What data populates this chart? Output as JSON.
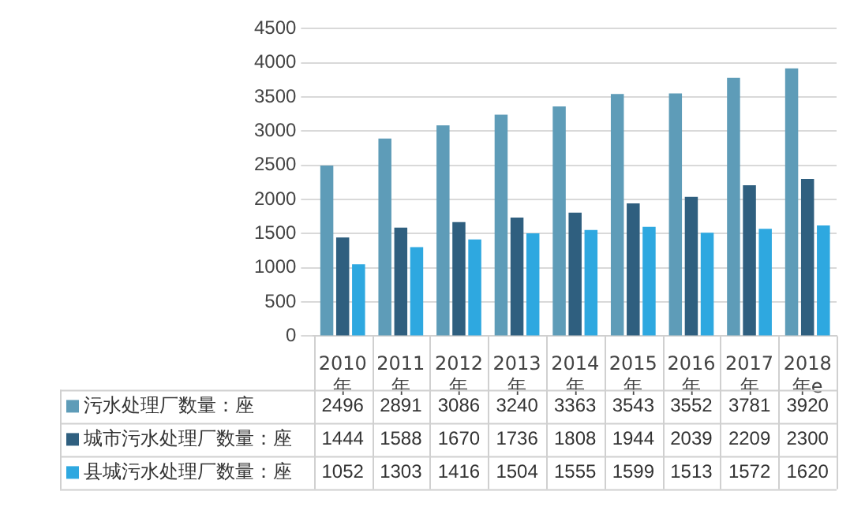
{
  "chart_data": {
    "type": "bar",
    "categories": [
      "2010年",
      "2011年",
      "2012年",
      "2013年",
      "2014年",
      "2015年",
      "2016年",
      "2017年",
      "2018年e"
    ],
    "series": [
      {
        "name": "污水处理厂数量：座",
        "color": "#5e9cb8",
        "values": [
          2496,
          2891,
          3086,
          3240,
          3363,
          3543,
          3552,
          3781,
          3920
        ]
      },
      {
        "name": "城市污水处理厂数量：座",
        "color": "#2f5f7f",
        "values": [
          1444,
          1588,
          1670,
          1736,
          1808,
          1944,
          2039,
          2209,
          2300
        ]
      },
      {
        "name": "县城污水处理厂数量：座",
        "color": "#2ea8e0",
        "values": [
          1052,
          1303,
          1416,
          1504,
          1555,
          1599,
          1513,
          1572,
          1620
        ]
      }
    ],
    "ylim": [
      0,
      4500
    ],
    "yticks": [
      0,
      500,
      1000,
      1500,
      2000,
      2500,
      3000,
      3500,
      4000,
      4500
    ],
    "grid": "y",
    "legend": "bottom",
    "data_labels": true
  }
}
